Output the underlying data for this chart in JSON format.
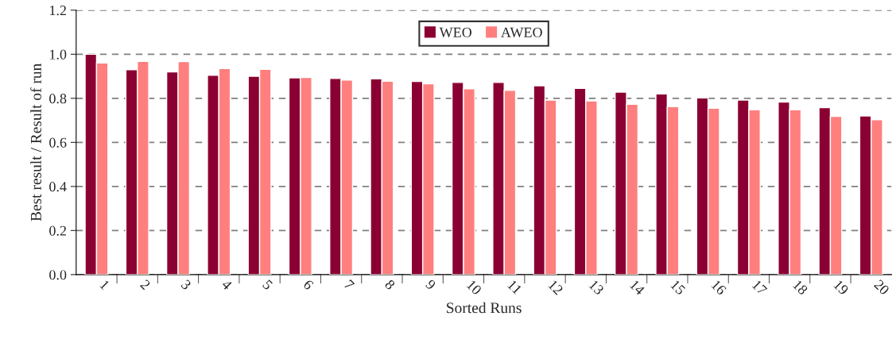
{
  "chart_data": {
    "type": "bar",
    "xlabel": "Sorted Runs",
    "ylabel": "Best result / Result of run",
    "categories": [
      "1",
      "2",
      "3",
      "4",
      "5",
      "6",
      "7",
      "8",
      "9",
      "10",
      "11",
      "12",
      "13",
      "14",
      "15",
      "16",
      "17",
      "18",
      "19",
      "20"
    ],
    "series": [
      {
        "name": "WEO",
        "color": "#8b0033",
        "values": [
          1.0,
          0.93,
          0.92,
          0.905,
          0.9,
          0.893,
          0.89,
          0.888,
          0.877,
          0.872,
          0.872,
          0.857,
          0.845,
          0.828,
          0.82,
          0.802,
          0.792,
          0.783,
          0.758,
          0.72
        ]
      },
      {
        "name": "AWEO",
        "color": "#ff7f7f",
        "values": [
          0.96,
          0.968,
          0.967,
          0.935,
          0.932,
          0.895,
          0.883,
          0.878,
          0.866,
          0.843,
          0.836,
          0.792,
          0.788,
          0.773,
          0.762,
          0.755,
          0.748,
          0.748,
          0.718,
          0.703
        ]
      }
    ],
    "ylim": [
      0,
      1.2
    ],
    "yticks": [
      {
        "value": 0,
        "label": "0.0"
      },
      {
        "value": 0.2,
        "label": "0.2"
      },
      {
        "value": 0.4,
        "label": "0.4"
      },
      {
        "value": 0.6,
        "label": "0.6"
      },
      {
        "value": 0.8,
        "label": "0.8"
      },
      {
        "value": 1.0,
        "label": "1.0"
      },
      {
        "value": 1.2,
        "label": "1.2"
      }
    ],
    "grid": "y",
    "legend": "top"
  }
}
